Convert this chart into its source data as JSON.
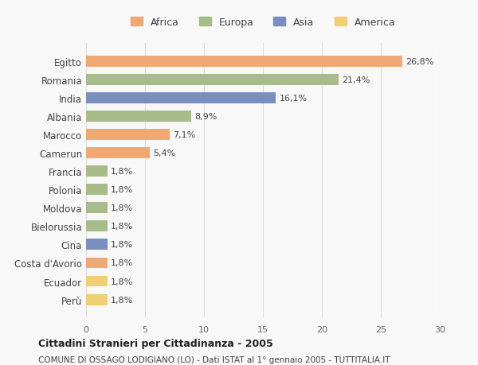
{
  "categories": [
    "Egitto",
    "Romania",
    "India",
    "Albania",
    "Marocco",
    "Camerun",
    "Francia",
    "Polonia",
    "Moldova",
    "Bielorussia",
    "Cina",
    "Costa d'Avorio",
    "Ecuador",
    "Perù"
  ],
  "values": [
    26.8,
    21.4,
    16.1,
    8.9,
    7.1,
    5.4,
    1.8,
    1.8,
    1.8,
    1.8,
    1.8,
    1.8,
    1.8,
    1.8
  ],
  "labels": [
    "26,8%",
    "21,4%",
    "16,1%",
    "8,9%",
    "7,1%",
    "5,4%",
    "1,8%",
    "1,8%",
    "1,8%",
    "1,8%",
    "1,8%",
    "1,8%",
    "1,8%",
    "1,8%"
  ],
  "continents": [
    "Africa",
    "Europa",
    "Asia",
    "Europa",
    "Africa",
    "Africa",
    "Europa",
    "Europa",
    "Europa",
    "Europa",
    "Asia",
    "Africa",
    "America",
    "America"
  ],
  "continent_colors": {
    "Africa": "#F0A875",
    "Europa": "#A8BC8A",
    "Asia": "#7A8FC0",
    "America": "#F0D075"
  },
  "legend_order": [
    "Africa",
    "Europa",
    "Asia",
    "America"
  ],
  "title1": "Cittadini Stranieri per Cittadinanza - 2005",
  "title2": "COMUNE DI OSSAGO LODIGIANO (LO) - Dati ISTAT al 1° gennaio 2005 - TUTTITALIA.IT",
  "xlim": [
    0,
    30
  ],
  "xticks": [
    0,
    5,
    10,
    15,
    20,
    25,
    30
  ],
  "background_color": "#f8f8f8",
  "grid_color": "#dddddd"
}
